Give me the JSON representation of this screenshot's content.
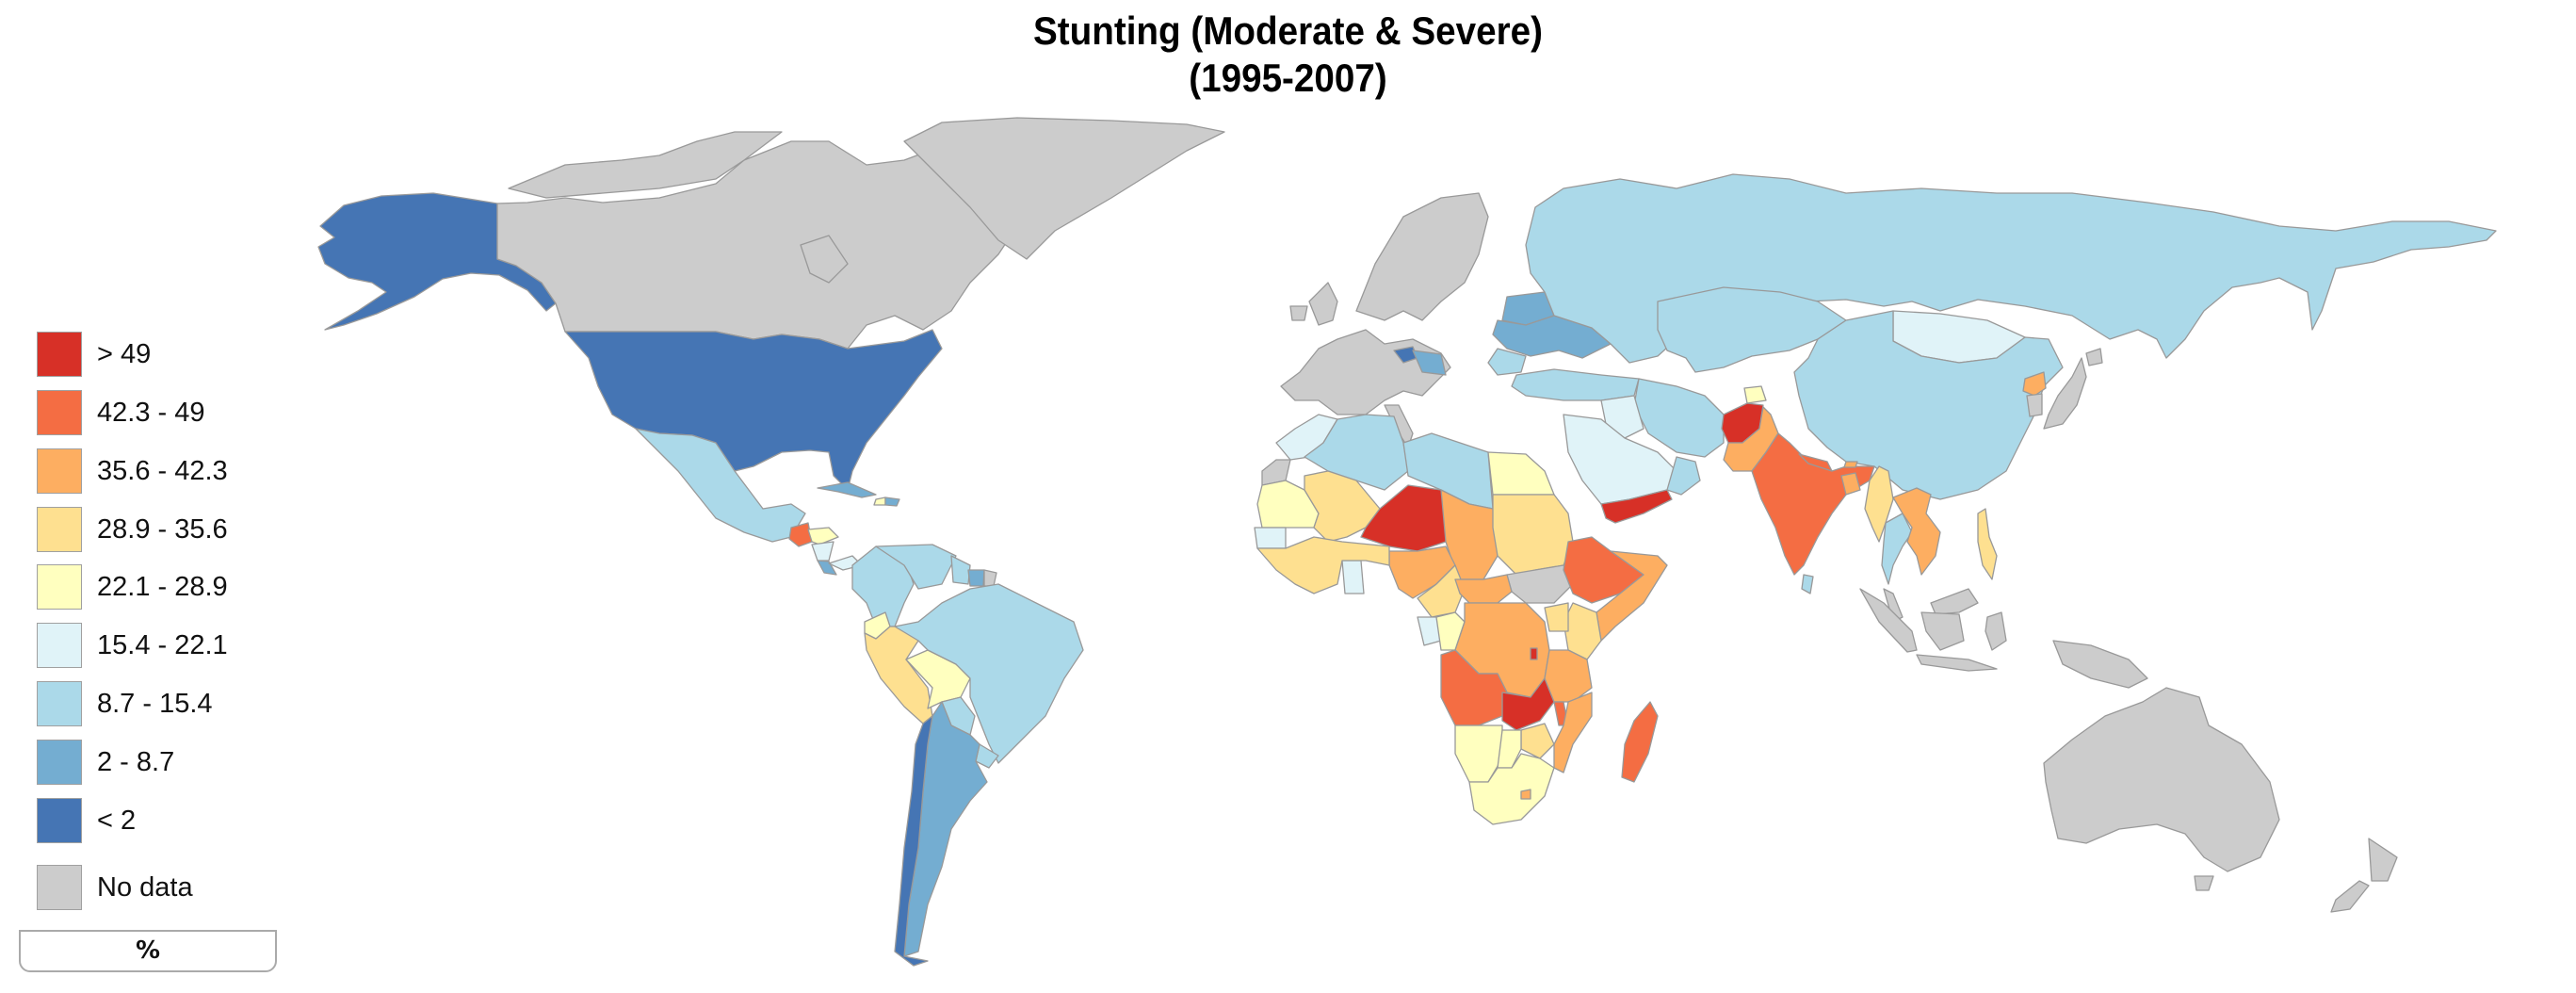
{
  "title": {
    "line1": "Stunting (Moderate & Severe)",
    "line2": "(1995-2007)"
  },
  "legend": {
    "items": [
      {
        "label": "> 49",
        "color": "#d73027",
        "class": "c1"
      },
      {
        "label": "42.3 - 49",
        "color": "#f46d43",
        "class": "c2"
      },
      {
        "label": "35.6 - 42.3",
        "color": "#fdae61",
        "class": "c3"
      },
      {
        "label": "28.9 - 35.6",
        "color": "#fee090",
        "class": "c4"
      },
      {
        "label": "22.1 - 28.9",
        "color": "#ffffbf",
        "class": "c5"
      },
      {
        "label": "15.4 - 22.1",
        "color": "#e0f3f8",
        "class": "c6"
      },
      {
        "label": "8.7 - 15.4",
        "color": "#abd9e9",
        "class": "c7"
      },
      {
        "label": "2 - 8.7",
        "color": "#74add1",
        "class": "c8"
      },
      {
        "label": "< 2",
        "color": "#4575b4",
        "class": "c9"
      }
    ],
    "no_data": {
      "label": "No data",
      "color": "#cccccc",
      "class": "nd"
    },
    "unit": "%"
  },
  "chart_data": {
    "type": "choropleth",
    "title": "Stunting (Moderate & Severe) (1995-2007)",
    "unit": "%",
    "classes": [
      {
        "range": "> 49",
        "color": "#d73027"
      },
      {
        "range": "42.3 - 49",
        "color": "#f46d43"
      },
      {
        "range": "35.6 - 42.3",
        "color": "#fdae61"
      },
      {
        "range": "28.9 - 35.6",
        "color": "#fee090"
      },
      {
        "range": "22.1 - 28.9",
        "color": "#ffffbf"
      },
      {
        "range": "15.4 - 22.1",
        "color": "#e0f3f8"
      },
      {
        "range": "8.7 - 15.4",
        "color": "#abd9e9"
      },
      {
        "range": "2 - 8.7",
        "color": "#74add1"
      },
      {
        "range": "< 2",
        "color": "#4575b4"
      },
      {
        "range": "No data",
        "color": "#cccccc"
      }
    ],
    "regions": [
      {
        "name": "United States",
        "class": "< 2"
      },
      {
        "name": "Alaska (US)",
        "class": "< 2"
      },
      {
        "name": "Chile",
        "class": "< 2"
      },
      {
        "name": "Croatia",
        "class": "< 2"
      },
      {
        "name": "Canada",
        "class": "No data"
      },
      {
        "name": "Greenland",
        "class": "No data"
      },
      {
        "name": "Western Europe",
        "class": "No data"
      },
      {
        "name": "Scandinavia",
        "class": "No data"
      },
      {
        "name": "Australia",
        "class": "No data"
      },
      {
        "name": "New Zealand",
        "class": "No data"
      },
      {
        "name": "Japan",
        "class": "No data"
      },
      {
        "name": "South Korea",
        "class": "No data"
      },
      {
        "name": "Indonesia",
        "class": "No data"
      },
      {
        "name": "Papua New Guinea",
        "class": "No data"
      },
      {
        "name": "Malaysia",
        "class": "No data"
      },
      {
        "name": "South Sudan",
        "class": "No data"
      },
      {
        "name": "Western Sahara",
        "class": "No data"
      },
      {
        "name": "French Guiana",
        "class": "No data"
      },
      {
        "name": "Mexico",
        "class": "8.7 - 15.4"
      },
      {
        "name": "Brazil",
        "class": "8.7 - 15.4"
      },
      {
        "name": "Colombia",
        "class": "8.7 - 15.4"
      },
      {
        "name": "Venezuela",
        "class": "8.7 - 15.4"
      },
      {
        "name": "Paraguay",
        "class": "8.7 - 15.4"
      },
      {
        "name": "Uruguay",
        "class": "8.7 - 15.4"
      },
      {
        "name": "Guyana",
        "class": "8.7 - 15.4"
      },
      {
        "name": "Argentina",
        "class": "2 - 8.7"
      },
      {
        "name": "Suriname",
        "class": "2 - 8.7"
      },
      {
        "name": "Cuba",
        "class": "2 - 8.7"
      },
      {
        "name": "Costa Rica",
        "class": "2 - 8.7"
      },
      {
        "name": "Dominican Republic",
        "class": "2 - 8.7"
      },
      {
        "name": "Haiti",
        "class": "22.1 - 28.9"
      },
      {
        "name": "Guatemala",
        "class": "42.3 - 49"
      },
      {
        "name": "Honduras",
        "class": "22.1 - 28.9"
      },
      {
        "name": "Nicaragua",
        "class": "15.4 - 22.1"
      },
      {
        "name": "Panama",
        "class": "15.4 - 22.1"
      },
      {
        "name": "Ecuador",
        "class": "22.1 - 28.9"
      },
      {
        "name": "Peru",
        "class": "28.9 - 35.6"
      },
      {
        "name": "Bolivia",
        "class": "22.1 - 28.9"
      },
      {
        "name": "Russia",
        "class": "8.7 - 15.4"
      },
      {
        "name": "Kazakhstan",
        "class": "8.7 - 15.4"
      },
      {
        "name": "China",
        "class": "8.7 - 15.4"
      },
      {
        "name": "Mongolia",
        "class": "15.4 - 22.1"
      },
      {
        "name": "Ukraine",
        "class": "2 - 8.7"
      },
      {
        "name": "Belarus",
        "class": "2 - 8.7"
      },
      {
        "name": "Bosnia & Serbia",
        "class": "2 - 8.7"
      },
      {
        "name": "Romania",
        "class": "8.7 - 15.4"
      },
      {
        "name": "Turkey",
        "class": "8.7 - 15.4"
      },
      {
        "name": "Iran",
        "class": "8.7 - 15.4"
      },
      {
        "name": "Saudi Arabia",
        "class": "15.4 - 22.1"
      },
      {
        "name": "Iraq",
        "class": "15.4 - 22.1"
      },
      {
        "name": "Oman",
        "class": "8.7 - 15.4"
      },
      {
        "name": "Yemen",
        "class": "> 49"
      },
      {
        "name": "Afghanistan",
        "class": "> 49"
      },
      {
        "name": "Tajikistan",
        "class": "22.1 - 28.9"
      },
      {
        "name": "Pakistan",
        "class": "35.6 - 42.3"
      },
      {
        "name": "India",
        "class": "42.3 - 49"
      },
      {
        "name": "Nepal",
        "class": "42.3 - 49"
      },
      {
        "name": "Bangladesh",
        "class": "35.6 - 42.3"
      },
      {
        "name": "Bhutan",
        "class": "35.6 - 42.3"
      },
      {
        "name": "Myanmar",
        "class": "28.9 - 35.6"
      },
      {
        "name": "Thailand",
        "class": "8.7 - 15.4"
      },
      {
        "name": "Laos / Vietnam / Cambodia",
        "class": "35.6 - 42.3"
      },
      {
        "name": "North Korea",
        "class": "35.6 - 42.3"
      },
      {
        "name": "Philippines",
        "class": "28.9 - 35.6"
      },
      {
        "name": "Sri Lanka",
        "class": "8.7 - 15.4"
      },
      {
        "name": "Timor-Leste",
        "class": "> 49"
      },
      {
        "name": "Morocco",
        "class": "15.4 - 22.1"
      },
      {
        "name": "Algeria",
        "class": "8.7 - 15.4"
      },
      {
        "name": "Libya",
        "class": "8.7 - 15.4"
      },
      {
        "name": "Egypt",
        "class": "22.1 - 28.9"
      },
      {
        "name": "Mauritania",
        "class": "22.1 - 28.9"
      },
      {
        "name": "Mali",
        "class": "28.9 - 35.6"
      },
      {
        "name": "Niger",
        "class": "> 49"
      },
      {
        "name": "Chad",
        "class": "35.6 - 42.3"
      },
      {
        "name": "Sudan",
        "class": "28.9 - 35.6"
      },
      {
        "name": "Ethiopia",
        "class": "42.3 - 49"
      },
      {
        "name": "Somalia",
        "class": "35.6 - 42.3"
      },
      {
        "name": "Kenya",
        "class": "28.9 - 35.6"
      },
      {
        "name": "Uganda",
        "class": "28.9 - 35.6"
      },
      {
        "name": "Nigeria",
        "class": "35.6 - 42.3"
      },
      {
        "name": "Senegal",
        "class": "15.4 - 22.1"
      },
      {
        "name": "Ghana",
        "class": "15.4 - 22.1"
      },
      {
        "name": "Cameroon",
        "class": "28.9 - 35.6"
      },
      {
        "name": "Central African Republic",
        "class": "35.6 - 42.3"
      },
      {
        "name": "DR Congo",
        "class": "35.6 - 42.3"
      },
      {
        "name": "Gabon",
        "class": "15.4 - 22.1"
      },
      {
        "name": "Congo",
        "class": "22.1 - 28.9"
      },
      {
        "name": "Angola",
        "class": "42.3 - 49"
      },
      {
        "name": "Zambia",
        "class": "> 49"
      },
      {
        "name": "Burundi",
        "class": "> 49"
      },
      {
        "name": "Tanzania",
        "class": "35.6 - 42.3"
      },
      {
        "name": "Malawi",
        "class": "42.3 - 49"
      },
      {
        "name": "Mozambique",
        "class": "35.6 - 42.3"
      },
      {
        "name": "Zimbabwe",
        "class": "28.9 - 35.6"
      },
      {
        "name": "Namibia",
        "class": "22.1 - 28.9"
      },
      {
        "name": "Botswana",
        "class": "22.1 - 28.9"
      },
      {
        "name": "South Africa",
        "class": "22.1 - 28.9"
      },
      {
        "name": "Lesotho",
        "class": "35.6 - 42.3"
      },
      {
        "name": "Madagascar",
        "class": "42.3 - 49"
      }
    ]
  }
}
